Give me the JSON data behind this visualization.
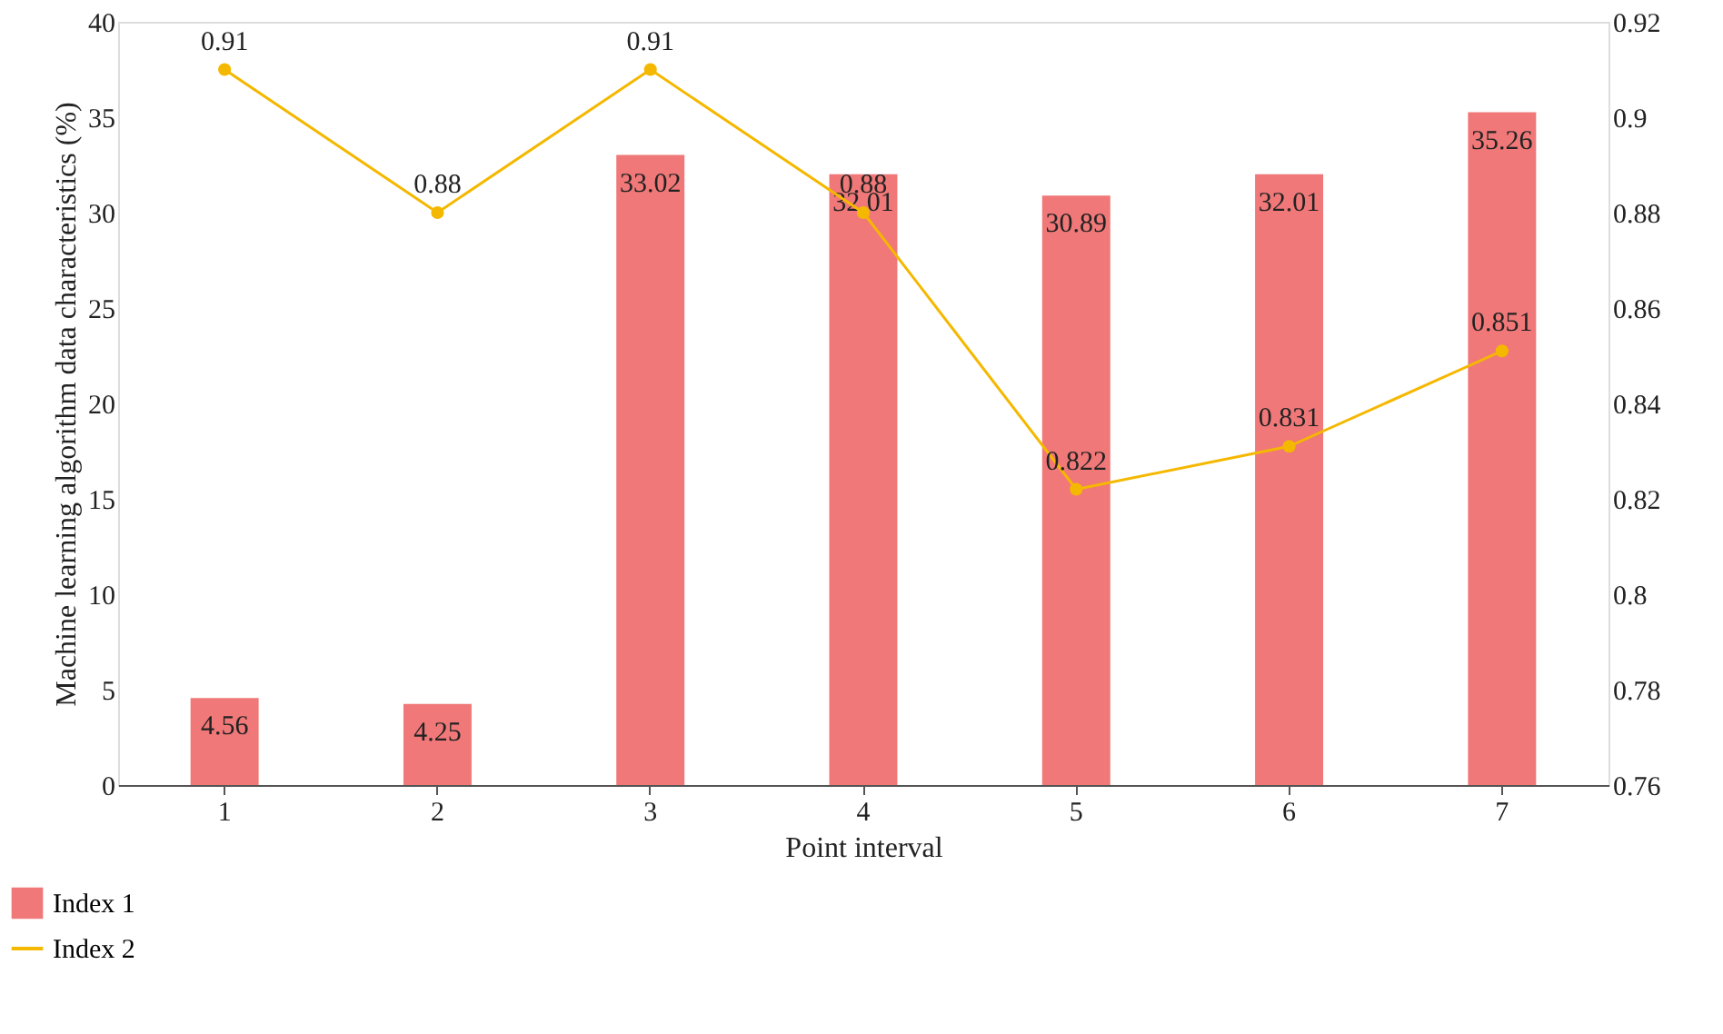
{
  "chart_data": {
    "type": "bar",
    "xlabel": "Point interval",
    "ylabel": "Machine learning algorithm data characteristics (%)",
    "categories": [
      "1",
      "2",
      "3",
      "4",
      "5",
      "6",
      "7"
    ],
    "series": [
      {
        "name": "Index 1",
        "color": "#f07878",
        "values": [
          4.56,
          4.25,
          33.02,
          32.01,
          30.89,
          32.01,
          35.26
        ]
      },
      {
        "name": "Index 2",
        "type": "line",
        "axis": "y2",
        "color": "#f5b800",
        "marker": "circle",
        "values": [
          0.91,
          0.88,
          0.91,
          0.88,
          0.822,
          0.831,
          0.851
        ]
      }
    ],
    "ylim": [
      0,
      40
    ],
    "yticks": [
      0,
      5,
      10,
      15,
      20,
      25,
      30,
      35,
      40
    ],
    "y2lim": [
      0.76,
      0.92
    ],
    "y2ticks": [
      0.76,
      0.78,
      0.8,
      0.82,
      0.84,
      0.86,
      0.88,
      0.9,
      0.92
    ],
    "data_labels": true,
    "grid": false,
    "legend": "bottom left"
  }
}
